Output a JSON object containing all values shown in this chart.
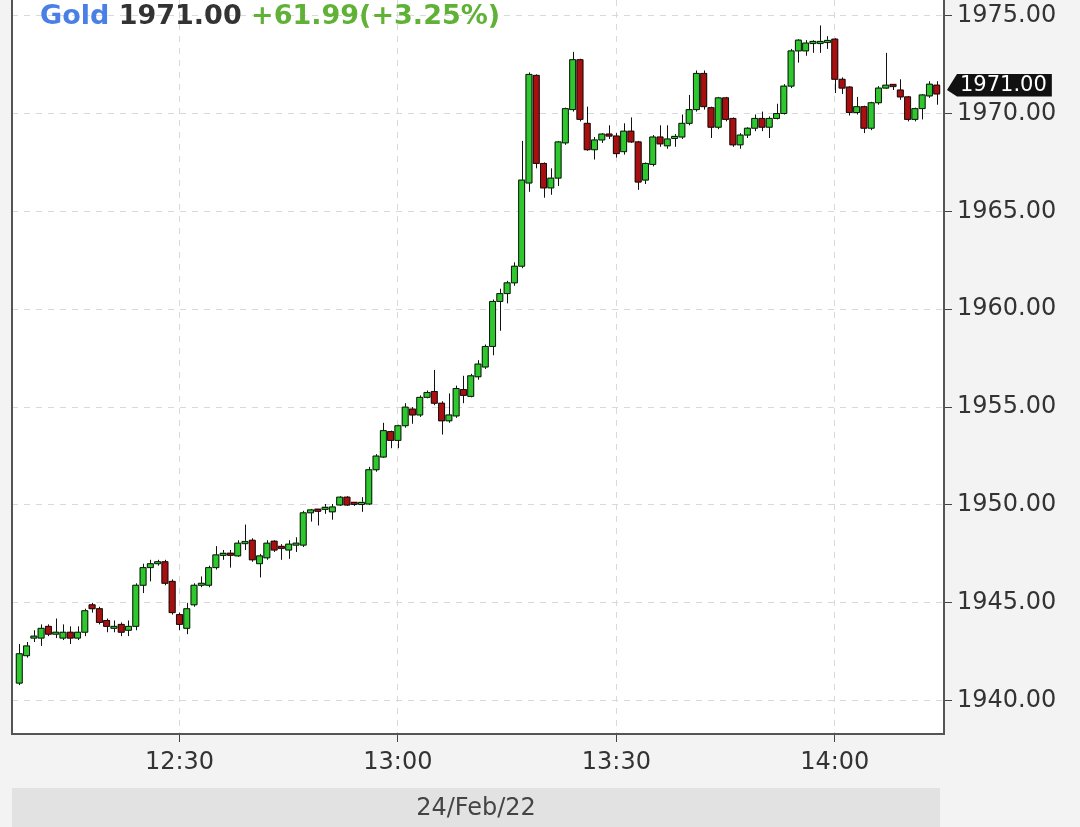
{
  "chart_data": {
    "type": "candlestick",
    "title": "Gold 1971.00 +61.99(+3.25%)",
    "xlabel": "24/Feb/22",
    "x": [
      12.1333,
      12.15,
      12.1667,
      12.1833,
      12.2,
      12.2167,
      12.2333,
      12.25,
      12.2667,
      12.2833,
      12.3,
      12.3167,
      12.3333,
      12.35,
      12.3667,
      12.3833,
      12.4,
      12.4167,
      12.4333,
      12.45,
      12.4667,
      12.4833,
      12.5,
      12.5167,
      12.5333,
      12.55,
      12.5667,
      12.5833,
      12.6,
      12.6167,
      12.6333,
      12.65,
      12.6667,
      12.6833,
      12.7,
      12.7167,
      12.7333,
      12.75,
      12.7667,
      12.7833,
      12.8,
      12.8167,
      12.8333,
      12.85,
      12.8667,
      12.8833,
      12.9,
      12.9167,
      12.9333,
      12.95,
      12.9667,
      12.9833,
      13,
      13.0167,
      13.0333,
      13.05,
      13.0667,
      13.0833,
      13.1,
      13.1167,
      13.1333,
      13.15,
      13.1667,
      13.1833,
      13.2,
      13.2167,
      13.2333,
      13.25,
      13.2667,
      13.2833,
      13.3,
      13.3167,
      13.3333,
      13.35,
      13.3667,
      13.3833,
      13.4,
      13.4167,
      13.4333,
      13.45,
      13.4667,
      13.4833,
      13.5,
      13.5167,
      13.5333,
      13.55,
      13.5667,
      13.5833,
      13.6,
      13.6167,
      13.6333,
      13.65,
      13.6667,
      13.6833,
      13.7,
      13.7167,
      13.7333,
      13.75,
      13.7667,
      13.7833,
      13.8,
      13.8167,
      13.8333,
      13.85,
      13.8667,
      13.8833,
      13.9,
      13.9167,
      13.9333,
      13.95,
      13.9667,
      13.9833,
      14,
      14.0167,
      14.0333,
      14.05,
      14.0667,
      14.0833,
      14.1,
      14.1167,
      14.1333,
      14.15,
      14.1667,
      14.1833,
      14.2,
      14.2167,
      14.2333
    ],
    "ohlc": [
      [
        1940.9,
        1942.9,
        1940.8,
        1942.4
      ],
      [
        1942.3,
        1943.0,
        1942.2,
        1942.8
      ],
      [
        1943.2,
        1943.6,
        1943.0,
        1943.3
      ],
      [
        1943.2,
        1943.9,
        1942.8,
        1943.7
      ],
      [
        1943.8,
        1943.9,
        1943.3,
        1943.4
      ],
      [
        1943.4,
        1944.2,
        1943.2,
        1943.5
      ],
      [
        1943.2,
        1943.9,
        1943.1,
        1943.5
      ],
      [
        1943.5,
        1943.8,
        1942.9,
        1943.2
      ],
      [
        1943.2,
        1943.8,
        1943.1,
        1943.5
      ],
      [
        1943.5,
        1944.7,
        1943.3,
        1944.6
      ],
      [
        1944.9,
        1945.0,
        1944.5,
        1944.7
      ],
      [
        1944.7,
        1944.8,
        1943.9,
        1944.0
      ],
      [
        1944.1,
        1944.2,
        1943.5,
        1943.8
      ],
      [
        1943.7,
        1944.1,
        1943.5,
        1943.8
      ],
      [
        1943.9,
        1944.0,
        1943.3,
        1943.5
      ],
      [
        1943.6,
        1944.1,
        1943.3,
        1943.8
      ],
      [
        1943.8,
        1946.0,
        1943.6,
        1945.9
      ],
      [
        1945.9,
        1947.0,
        1945.5,
        1946.8
      ],
      [
        1946.8,
        1947.2,
        1946.1,
        1947.0
      ],
      [
        1947.0,
        1947.2,
        1946.9,
        1947.1
      ],
      [
        1947.1,
        1947.2,
        1945.9,
        1946.0
      ],
      [
        1946.1,
        1946.2,
        1944.4,
        1944.5
      ],
      [
        1944.4,
        1944.5,
        1943.6,
        1943.9
      ],
      [
        1943.7,
        1945.0,
        1943.4,
        1944.7
      ],
      [
        1944.9,
        1946.0,
        1944.8,
        1945.9
      ],
      [
        1945.9,
        1946.35,
        1945.8,
        1946.0
      ],
      [
        1945.9,
        1946.9,
        1945.8,
        1946.8
      ],
      [
        1946.8,
        1947.9,
        1946.7,
        1947.45
      ],
      [
        1947.45,
        1947.7,
        1947.2,
        1947.5
      ],
      [
        1947.5,
        1947.7,
        1946.8,
        1947.45
      ],
      [
        1947.4,
        1948.2,
        1947.35,
        1948.05
      ],
      [
        1948.05,
        1949.0,
        1947.7,
        1948.1
      ],
      [
        1948.2,
        1948.3,
        1947.1,
        1947.2
      ],
      [
        1947.0,
        1947.5,
        1946.3,
        1947.4
      ],
      [
        1947.3,
        1948.2,
        1947.2,
        1948.05
      ],
      [
        1948.15,
        1948.2,
        1947.6,
        1947.7
      ],
      [
        1947.85,
        1948.0,
        1947.2,
        1947.8
      ],
      [
        1947.7,
        1948.2,
        1947.25,
        1948.0
      ],
      [
        1947.95,
        1948.35,
        1947.6,
        1948.05
      ],
      [
        1947.95,
        1949.7,
        1947.85,
        1949.6
      ],
      [
        1949.6,
        1949.8,
        1949.15,
        1949.75
      ],
      [
        1949.75,
        1949.8,
        1948.95,
        1949.7
      ],
      [
        1949.8,
        1950.05,
        1949.55,
        1949.85
      ],
      [
        1949.65,
        1950.05,
        1949.25,
        1949.9
      ],
      [
        1950.0,
        1950.45,
        1949.95,
        1950.4
      ],
      [
        1950.4,
        1950.45,
        1949.95,
        1950.0
      ],
      [
        1950.1,
        1950.15,
        1949.95,
        1950.05
      ],
      [
        1950.05,
        1950.4,
        1949.65,
        1950.1
      ],
      [
        1950.05,
        1951.95,
        1950.0,
        1951.8
      ],
      [
        1951.8,
        1952.6,
        1951.7,
        1952.5
      ],
      [
        1952.45,
        1954.2,
        1952.4,
        1953.8
      ],
      [
        1953.75,
        1953.8,
        1952.9,
        1953.3
      ],
      [
        1953.3,
        1954.1,
        1952.9,
        1954.05
      ],
      [
        1954.05,
        1955.2,
        1953.95,
        1955.0
      ],
      [
        1954.9,
        1955.0,
        1954.15,
        1954.6
      ],
      [
        1954.6,
        1955.6,
        1954.5,
        1955.5
      ],
      [
        1955.5,
        1955.85,
        1955.45,
        1955.75
      ],
      [
        1955.8,
        1956.9,
        1955.1,
        1955.2
      ],
      [
        1955.2,
        1955.3,
        1953.6,
        1954.3
      ],
      [
        1954.3,
        1955.7,
        1954.2,
        1954.6
      ],
      [
        1954.55,
        1956.1,
        1954.45,
        1955.95
      ],
      [
        1955.9,
        1956.6,
        1955.2,
        1955.6
      ],
      [
        1955.55,
        1956.7,
        1955.5,
        1956.6
      ],
      [
        1956.55,
        1957.4,
        1956.4,
        1957.2
      ],
      [
        1957.05,
        1958.2,
        1956.95,
        1958.1
      ],
      [
        1958.1,
        1960.5,
        1957.65,
        1960.4
      ],
      [
        1960.4,
        1961.05,
        1958.9,
        1960.8
      ],
      [
        1960.8,
        1961.45,
        1960.3,
        1961.35
      ],
      [
        1961.35,
        1962.4,
        1961.2,
        1962.2
      ],
      [
        1962.2,
        1968.6,
        1962.1,
        1966.6
      ],
      [
        1966.45,
        1972.1,
        1966.0,
        1972.0
      ],
      [
        1971.95,
        1972.0,
        1967.2,
        1967.45
      ],
      [
        1967.45,
        1967.5,
        1965.7,
        1966.2
      ],
      [
        1966.2,
        1967.2,
        1965.85,
        1966.7
      ],
      [
        1966.7,
        1968.6,
        1966.3,
        1968.55
      ],
      [
        1968.5,
        1970.3,
        1968.4,
        1970.25
      ],
      [
        1970.2,
        1973.15,
        1970.1,
        1972.75
      ],
      [
        1972.75,
        1972.8,
        1969.6,
        1969.7
      ],
      [
        1969.5,
        1970.35,
        1968.1,
        1968.15
      ],
      [
        1968.15,
        1968.8,
        1967.65,
        1968.65
      ],
      [
        1968.65,
        1969.0,
        1968.5,
        1968.95
      ],
      [
        1968.95,
        1969.4,
        1968.7,
        1968.85
      ],
      [
        1968.85,
        1969.0,
        1967.75,
        1967.95
      ],
      [
        1968.05,
        1969.5,
        1967.9,
        1969.1
      ],
      [
        1969.1,
        1969.8,
        1968.5,
        1968.55
      ],
      [
        1968.55,
        1968.6,
        1966.1,
        1966.5
      ],
      [
        1966.6,
        1967.5,
        1966.4,
        1967.45
      ],
      [
        1967.4,
        1968.9,
        1967.3,
        1968.8
      ],
      [
        1968.8,
        1969.4,
        1968.3,
        1968.45
      ],
      [
        1968.35,
        1969.4,
        1968.2,
        1968.7
      ],
      [
        1968.75,
        1968.95,
        1968.3,
        1968.8
      ],
      [
        1968.8,
        1969.95,
        1968.7,
        1969.5
      ],
      [
        1969.5,
        1970.95,
        1969.4,
        1970.2
      ],
      [
        1970.2,
        1972.2,
        1970.1,
        1972.05
      ],
      [
        1972.05,
        1972.2,
        1970.2,
        1970.35
      ],
      [
        1970.3,
        1970.35,
        1968.75,
        1969.3
      ],
      [
        1969.3,
        1970.85,
        1969.2,
        1970.8
      ],
      [
        1970.8,
        1970.85,
        1969.6,
        1969.7
      ],
      [
        1969.75,
        1969.8,
        1968.3,
        1968.4
      ],
      [
        1968.4,
        1969.0,
        1968.2,
        1968.9
      ],
      [
        1968.9,
        1969.3,
        1968.75,
        1969.25
      ],
      [
        1969.25,
        1969.95,
        1969.1,
        1969.75
      ],
      [
        1969.75,
        1970.1,
        1969.1,
        1969.3
      ],
      [
        1969.3,
        1969.85,
        1968.75,
        1969.75
      ],
      [
        1969.75,
        1970.5,
        1969.7,
        1970.0
      ],
      [
        1970.0,
        1971.5,
        1969.95,
        1971.4
      ],
      [
        1971.4,
        1973.3,
        1971.3,
        1973.2
      ],
      [
        1973.2,
        1973.8,
        1972.6,
        1973.75
      ],
      [
        1973.2,
        1973.75,
        1972.95,
        1973.6
      ],
      [
        1973.6,
        1973.75,
        1973.1,
        1973.65
      ],
      [
        1973.6,
        1974.5,
        1973.1,
        1973.65
      ],
      [
        1973.65,
        1973.95,
        1973.3,
        1973.7
      ],
      [
        1973.8,
        1973.85,
        1971.05,
        1971.75
      ],
      [
        1971.75,
        1971.85,
        1971.0,
        1971.3
      ],
      [
        1971.35,
        1971.4,
        1969.9,
        1970.05
      ],
      [
        1970.05,
        1970.85,
        1969.95,
        1970.35
      ],
      [
        1970.35,
        1970.4,
        1969.0,
        1969.25
      ],
      [
        1969.25,
        1970.6,
        1969.15,
        1970.55
      ],
      [
        1970.55,
        1971.4,
        1970.45,
        1971.3
      ],
      [
        1971.3,
        1973.1,
        1971.25,
        1971.45
      ],
      [
        1971.45,
        1971.5,
        1971.2,
        1971.4
      ],
      [
        1971.2,
        1971.75,
        1970.7,
        1970.85
      ],
      [
        1970.85,
        1970.9,
        1969.6,
        1969.7
      ],
      [
        1969.7,
        1970.3,
        1969.6,
        1970.25
      ],
      [
        1970.25,
        1971.0,
        1969.7,
        1970.95
      ],
      [
        1970.9,
        1971.65,
        1970.8,
        1971.5
      ],
      [
        1971.45,
        1971.65,
        1970.45,
        1971.0
      ]
    ],
    "colors": [
      "#2ec82e",
      "#2ec82e",
      "#2ec82e",
      "#2ec82e",
      "#a81010",
      "#2ec82e",
      "#2ec82e",
      "#a81010",
      "#2ec82e",
      "#2ec82e",
      "#a81010",
      "#a81010",
      "#a81010",
      "#2ec82e",
      "#a81010",
      "#2ec82e",
      "#2ec82e",
      "#2ec82e",
      "#2ec82e",
      "#2ec82e",
      "#a81010",
      "#a81010",
      "#a81010",
      "#2ec82e",
      "#2ec82e",
      "#2ec82e",
      "#2ec82e",
      "#2ec82e",
      "#2ec82e",
      "#a81010",
      "#2ec82e",
      "#2ec82e",
      "#a81010",
      "#2ec82e",
      "#2ec82e",
      "#a81010",
      "#a81010",
      "#2ec82e",
      "#2ec82e",
      "#2ec82e",
      "#2ec82e",
      "#a81010",
      "#2ec82e",
      "#2ec82e",
      "#2ec82e",
      "#a81010",
      "#a81010",
      "#2ec82e",
      "#2ec82e",
      "#2ec82e",
      "#2ec82e",
      "#a81010",
      "#2ec82e",
      "#2ec82e",
      "#a81010",
      "#2ec82e",
      "#2ec82e",
      "#a81010",
      "#a81010",
      "#2ec82e",
      "#2ec82e",
      "#a81010",
      "#2ec82e",
      "#2ec82e",
      "#2ec82e",
      "#2ec82e",
      "#2ec82e",
      "#2ec82e",
      "#2ec82e",
      "#2ec82e",
      "#2ec82e",
      "#a81010",
      "#a81010",
      "#2ec82e",
      "#2ec82e",
      "#2ec82e",
      "#2ec82e",
      "#a81010",
      "#a81010",
      "#2ec82e",
      "#2ec82e",
      "#a81010",
      "#a81010",
      "#2ec82e",
      "#a81010",
      "#a81010",
      "#2ec82e",
      "#2ec82e",
      "#a81010",
      "#2ec82e",
      "#2ec82e",
      "#2ec82e",
      "#2ec82e",
      "#2ec82e",
      "#a81010",
      "#a81010",
      "#2ec82e",
      "#a81010",
      "#a81010",
      "#2ec82e",
      "#2ec82e",
      "#2ec82e",
      "#a81010",
      "#2ec82e",
      "#2ec82e",
      "#2ec82e",
      "#2ec82e",
      "#2ec82e",
      "#2ec82e",
      "#2ec82e",
      "#2ec82e",
      "#2ec82e",
      "#a81010",
      "#a81010",
      "#a81010",
      "#2ec82e",
      "#a81010",
      "#2ec82e",
      "#2ec82e",
      "#2ec82e",
      "#a81010",
      "#a81010",
      "#a81010",
      "#2ec82e",
      "#2ec82e",
      "#2ec82e",
      "#a81010"
    ],
    "xlim": [
      12.1167,
      14.25
    ],
    "xticks": [
      {
        "value": 12.5,
        "label": "12:30"
      },
      {
        "value": 13,
        "label": "13:00"
      },
      {
        "value": 13.5,
        "label": "13:30"
      },
      {
        "value": 14,
        "label": "14:00"
      }
    ],
    "ylim": [
      1938.3,
      1975.8
    ],
    "yticks": [
      {
        "value": 1940,
        "label": "1940.00"
      },
      {
        "value": 1945,
        "label": "1945.00"
      },
      {
        "value": 1950,
        "label": "1950.00"
      },
      {
        "value": 1955,
        "label": "1955.00"
      },
      {
        "value": 1960,
        "label": "1960.00"
      },
      {
        "value": 1965,
        "label": "1965.00"
      },
      {
        "value": 1970,
        "label": "1970.00"
      },
      {
        "value": 1975,
        "label": "1975.00"
      }
    ],
    "grid": true,
    "annotations": [
      "1971.00"
    ]
  }
}
